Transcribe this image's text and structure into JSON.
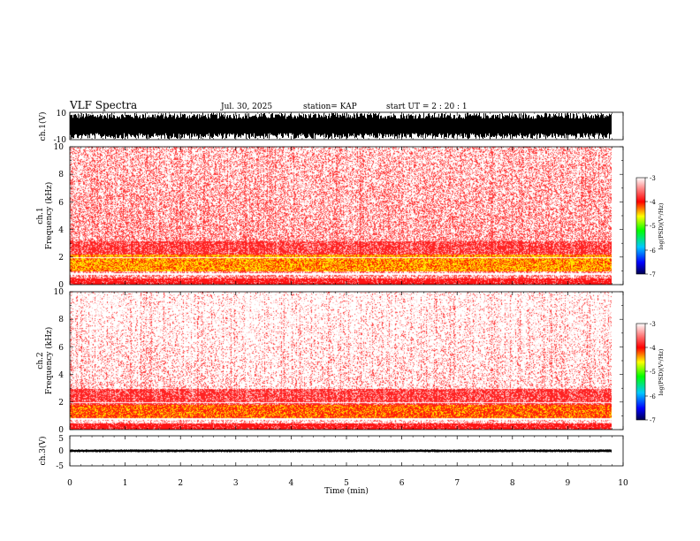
{
  "header": {
    "title": "VLF Spectra",
    "date": "Jul. 30, 2025",
    "station": "station= KAP",
    "start": "start  UT =   2  : 20 : 1"
  },
  "chart_data": [
    {
      "type": "line",
      "name": "ch1-waveform",
      "ylabel": "ch.1(V)",
      "ylim": [
        -10,
        10
      ],
      "yticks": [
        "10",
        "-10"
      ],
      "description_values": "dense saturated waveform spanning about -10 to 10 V",
      "amplitude_fraction": 0.95
    },
    {
      "type": "heatmap",
      "name": "ch1-spectrogram",
      "ylabel_top": "ch.1",
      "ylabel": "Frequency (kHz)",
      "ylim": [
        0,
        10
      ],
      "yticks": [
        "0",
        "2",
        "4",
        "6",
        "8",
        "10"
      ],
      "bands": [
        {
          "from_khz": 0.0,
          "to_khz": 0.5,
          "level": "strong red"
        },
        {
          "from_khz": 1.0,
          "to_khz": 2.2,
          "level": "yellow"
        },
        {
          "from_khz": 2.2,
          "to_khz": 3.2,
          "level": "red"
        },
        {
          "from_khz": 3.2,
          "to_khz": 10.0,
          "level": "sparse red"
        }
      ],
      "colorbar": {
        "ticks": [
          "-3",
          "-4",
          "-5",
          "-6",
          "-7"
        ],
        "range": [
          -7,
          -3
        ],
        "label": "log(PSD)(V²/Hz)"
      }
    },
    {
      "type": "heatmap",
      "name": "ch2-spectrogram",
      "ylabel_top": "ch.2",
      "ylabel": "Frequency (kHz)",
      "ylim": [
        0,
        10
      ],
      "yticks": [
        "0",
        "2",
        "4",
        "6",
        "8",
        "10"
      ],
      "bands": [
        {
          "from_khz": 0.0,
          "to_khz": 0.5,
          "level": "strong red"
        },
        {
          "from_khz": 0.8,
          "to_khz": 1.8,
          "level": "yellow-red"
        },
        {
          "from_khz": 1.8,
          "to_khz": 3.0,
          "level": "red"
        },
        {
          "from_khz": 3.0,
          "to_khz": 10.0,
          "level": "sparse red"
        }
      ],
      "colorbar": {
        "ticks": [
          "-3",
          "-4",
          "-5",
          "-6",
          "-7"
        ],
        "range": [
          -7,
          -3
        ],
        "label": "log(PSD)(V²/Hz)"
      }
    },
    {
      "type": "line",
      "name": "ch3-waveform",
      "ylabel": "ch.3(V)",
      "ylim": [
        -5,
        5
      ],
      "yticks": [
        "5",
        "0",
        "-5"
      ],
      "center_value": 0,
      "amplitude_value": 0.4
    }
  ],
  "xaxis": {
    "label": "Time (min)",
    "xlim": [
      0,
      10
    ],
    "ticks": [
      "0",
      "1",
      "2",
      "3",
      "4",
      "5",
      "6",
      "7",
      "8",
      "9",
      "10"
    ],
    "data_end": 9.8
  },
  "colors": {
    "red": "#ff0000",
    "yellow": "#ffff00",
    "ink": "#000000"
  }
}
